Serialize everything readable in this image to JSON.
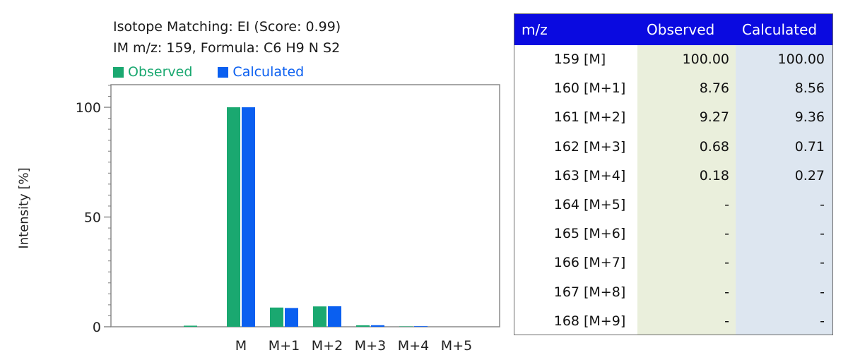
{
  "chart_data": {
    "type": "bar",
    "title": "Isotope Matching: EI (Score: 0.99)",
    "subtitle": "IM m/z: 159, Formula: C6 H9 N S2",
    "ylabel": "Intensity [%]",
    "yticks": [
      "0",
      "50",
      "100"
    ],
    "ylim": [
      0,
      116
    ],
    "categories": [
      "",
      "M",
      "M+1",
      "M+2",
      "M+3",
      "M+4",
      "M+5"
    ],
    "series": [
      {
        "name": "Observed",
        "color": "#1aa870",
        "values": [
          0.5,
          100.0,
          8.76,
          9.27,
          0.68,
          0.18,
          0
        ]
      },
      {
        "name": "Calculated",
        "color": "#0a5ff0",
        "values": [
          0,
          100.0,
          8.56,
          9.36,
          0.71,
          0.27,
          0
        ]
      }
    ]
  },
  "table": {
    "headers": {
      "mz": "m/z",
      "observed": "Observed",
      "calculated": "Calculated"
    },
    "header_color": "#0a0ae0",
    "observed_bg": "#eaefdc",
    "calculated_bg": "#dde6f0",
    "rows": [
      {
        "mz": "159",
        "label": "[M]",
        "observed": "100.00",
        "calculated": "100.00"
      },
      {
        "mz": "160",
        "label": "[M+1]",
        "observed": "8.76",
        "calculated": "8.56"
      },
      {
        "mz": "161",
        "label": "[M+2]",
        "observed": "9.27",
        "calculated": "9.36"
      },
      {
        "mz": "162",
        "label": "[M+3]",
        "observed": "0.68",
        "calculated": "0.71"
      },
      {
        "mz": "163",
        "label": "[M+4]",
        "observed": "0.18",
        "calculated": "0.27"
      },
      {
        "mz": "164",
        "label": "[M+5]",
        "observed": "-",
        "calculated": "-"
      },
      {
        "mz": "165",
        "label": "[M+6]",
        "observed": "-",
        "calculated": "-"
      },
      {
        "mz": "166",
        "label": "[M+7]",
        "observed": "-",
        "calculated": "-"
      },
      {
        "mz": "167",
        "label": "[M+8]",
        "observed": "-",
        "calculated": "-"
      },
      {
        "mz": "168",
        "label": "[M+9]",
        "observed": "-",
        "calculated": "-"
      }
    ]
  }
}
